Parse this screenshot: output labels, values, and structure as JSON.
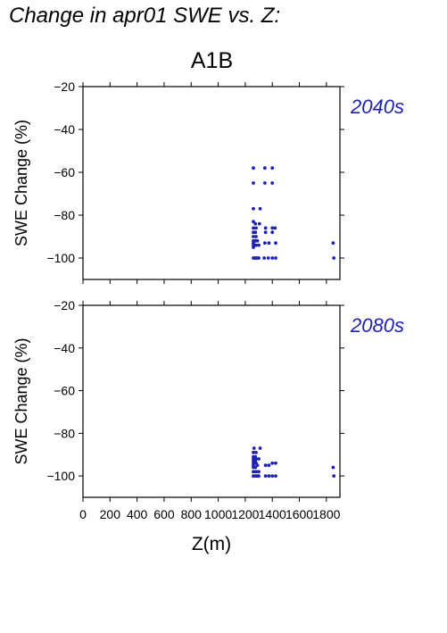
{
  "figure": {
    "title": "Change in apr01 SWE vs. Z:",
    "scenario": "A1B"
  },
  "colors": {
    "points": "#1f22b0",
    "period_label": "#1f22b0",
    "axis": "#000000"
  },
  "chart_data": [
    {
      "type": "scatter",
      "panel_label": "2040s",
      "xlabel": "",
      "ylabel": "SWE Change (%)",
      "xlim": [
        0,
        1900
      ],
      "ylim": [
        -110,
        -20
      ],
      "xticks": [
        0,
        200,
        400,
        600,
        800,
        1000,
        1200,
        1400,
        1600,
        1800
      ],
      "yticks": [
        -20,
        -40,
        -60,
        -80,
        -100
      ],
      "x_tick_labels_shown": false,
      "points": [
        [
          1260,
          -58
        ],
        [
          1345,
          -58
        ],
        [
          1400,
          -58
        ],
        [
          1260,
          -65
        ],
        [
          1345,
          -65
        ],
        [
          1400,
          -65
        ],
        [
          1260,
          -77
        ],
        [
          1310,
          -77
        ],
        [
          1260,
          -83
        ],
        [
          1275,
          -84
        ],
        [
          1305,
          -84
        ],
        [
          1260,
          -86
        ],
        [
          1280,
          -86
        ],
        [
          1350,
          -86
        ],
        [
          1400,
          -86
        ],
        [
          1420,
          -86
        ],
        [
          1260,
          -88
        ],
        [
          1275,
          -88
        ],
        [
          1350,
          -88
        ],
        [
          1400,
          -88
        ],
        [
          1260,
          -90
        ],
        [
          1280,
          -90
        ],
        [
          1260,
          -92
        ],
        [
          1275,
          -92
        ],
        [
          1290,
          -92
        ],
        [
          1260,
          -93
        ],
        [
          1345,
          -93
        ],
        [
          1375,
          -93
        ],
        [
          1425,
          -93
        ],
        [
          1850,
          -93
        ],
        [
          1260,
          -94
        ],
        [
          1280,
          -94
        ],
        [
          1300,
          -94
        ],
        [
          1260,
          -95
        ],
        [
          1260,
          -100
        ],
        [
          1270,
          -100
        ],
        [
          1280,
          -100
        ],
        [
          1290,
          -100
        ],
        [
          1300,
          -100
        ],
        [
          1340,
          -100
        ],
        [
          1370,
          -100
        ],
        [
          1400,
          -100
        ],
        [
          1425,
          -100
        ],
        [
          1855,
          -100
        ]
      ]
    },
    {
      "type": "scatter",
      "panel_label": "2080s",
      "xlabel": "Z(m)",
      "ylabel": "SWE Change (%)",
      "xlim": [
        0,
        1900
      ],
      "ylim": [
        -110,
        -20
      ],
      "xticks": [
        0,
        200,
        400,
        600,
        800,
        1000,
        1200,
        1400,
        1600,
        1800
      ],
      "yticks": [
        -20,
        -40,
        -60,
        -80,
        -100
      ],
      "x_tick_labels_shown": true,
      "points": [
        [
          1265,
          -87
        ],
        [
          1310,
          -87
        ],
        [
          1260,
          -89
        ],
        [
          1280,
          -89
        ],
        [
          1260,
          -91
        ],
        [
          1275,
          -91
        ],
        [
          1260,
          -92
        ],
        [
          1280,
          -92
        ],
        [
          1300,
          -92
        ],
        [
          1260,
          -93
        ],
        [
          1275,
          -93
        ],
        [
          1260,
          -94
        ],
        [
          1280,
          -94
        ],
        [
          1260,
          -95
        ],
        [
          1290,
          -95
        ],
        [
          1350,
          -95
        ],
        [
          1375,
          -95
        ],
        [
          1400,
          -94
        ],
        [
          1425,
          -94
        ],
        [
          1260,
          -96
        ],
        [
          1275,
          -96
        ],
        [
          1850,
          -96
        ],
        [
          1260,
          -98
        ],
        [
          1280,
          -98
        ],
        [
          1300,
          -98
        ],
        [
          1260,
          -100
        ],
        [
          1270,
          -100
        ],
        [
          1280,
          -100
        ],
        [
          1290,
          -100
        ],
        [
          1300,
          -100
        ],
        [
          1350,
          -100
        ],
        [
          1375,
          -100
        ],
        [
          1400,
          -100
        ],
        [
          1425,
          -100
        ],
        [
          1855,
          -100
        ]
      ]
    }
  ]
}
